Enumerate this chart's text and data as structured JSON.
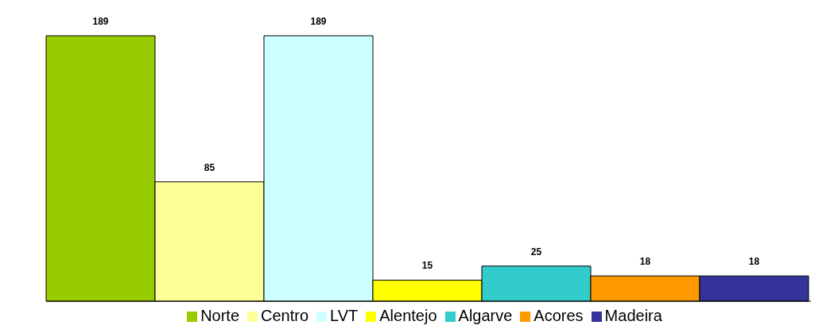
{
  "chart_data": {
    "type": "bar",
    "categories": [
      null
    ],
    "data_labels": true,
    "legend": "bottom",
    "grid": false,
    "series": [
      {
        "name": "Norte",
        "color": "#99cc00",
        "values": [
          189
        ]
      },
      {
        "name": "Centro",
        "color": "#ffff99",
        "values": [
          85
        ]
      },
      {
        "name": "LVT",
        "color": "#ccffff",
        "values": [
          189
        ]
      },
      {
        "name": "Alentejo",
        "color": "#ffff00",
        "values": [
          15
        ]
      },
      {
        "name": "Algarve",
        "color": "#33cccc",
        "values": [
          25
        ]
      },
      {
        "name": "Acores",
        "color": "#ff9900",
        "values": [
          18
        ]
      },
      {
        "name": "Madeira",
        "color": "#333399",
        "values": [
          18
        ]
      }
    ]
  }
}
